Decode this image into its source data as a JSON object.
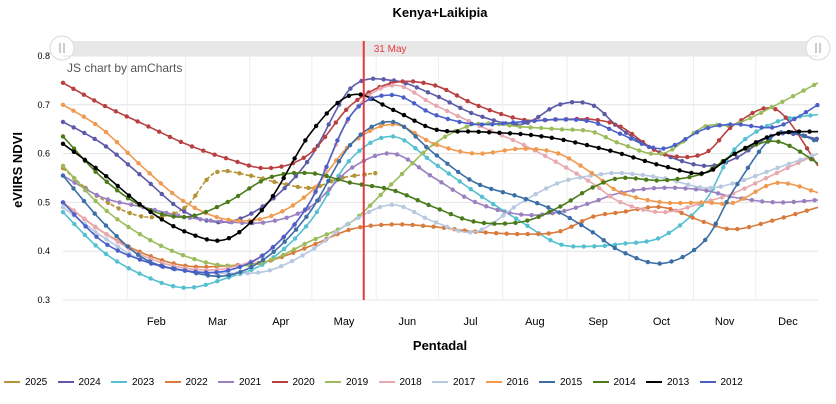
{
  "chart_data": {
    "type": "line",
    "title": "Kenya+Laikipia",
    "xlabel": "Pentadal",
    "ylabel": "eVIIRS NDVI",
    "credit": "JS chart by amCharts",
    "ylim": [
      0.3,
      0.8
    ],
    "yticks": [
      "0.3",
      "0.4",
      "0.5",
      "0.6",
      "0.7",
      "0.8"
    ],
    "x_months": [
      "Feb",
      "Mar",
      "Apr",
      "May",
      "Jun",
      "Jul",
      "Aug",
      "Sep",
      "Oct",
      "Nov",
      "Dec"
    ],
    "cursor_label": "31 May",
    "cursor_day": 146,
    "grid": true,
    "legend_position": "bottom",
    "series": [
      {
        "name": "2025",
        "color": "#b49434",
        "dash": true,
        "days": [
          1,
          15,
          32,
          46,
          60,
          74,
          91,
          105,
          121,
          135,
          152
        ],
        "values": [
          0.57,
          0.52,
          0.48,
          0.47,
          0.49,
          0.56,
          0.555,
          0.54,
          0.53,
          0.55,
          0.56
        ]
      },
      {
        "name": "2024",
        "color": "#5c5aa8",
        "days": [
          1,
          20,
          40,
          60,
          80,
          100,
          120,
          140,
          160,
          180,
          200,
          222,
          240,
          256,
          270,
          290,
          310,
          325,
          345,
          365
        ],
        "values": [
          0.665,
          0.62,
          0.55,
          0.48,
          0.46,
          0.5,
          0.59,
          0.735,
          0.75,
          0.72,
          0.68,
          0.66,
          0.7,
          0.7,
          0.65,
          0.6,
          0.575,
          0.59,
          0.64,
          0.63
        ]
      },
      {
        "name": "2023",
        "color": "#55c0d0",
        "days": [
          1,
          20,
          40,
          60,
          80,
          100,
          120,
          140,
          160,
          180,
          200,
          222,
          240,
          256,
          270,
          290,
          310,
          325,
          345,
          365
        ],
        "values": [
          0.48,
          0.4,
          0.35,
          0.325,
          0.345,
          0.38,
          0.46,
          0.59,
          0.635,
          0.58,
          0.52,
          0.46,
          0.415,
          0.41,
          0.415,
          0.43,
          0.5,
          0.61,
          0.665,
          0.68
        ]
      },
      {
        "name": "2022",
        "color": "#d87b3c",
        "days": [
          1,
          20,
          40,
          60,
          80,
          100,
          120,
          140,
          160,
          180,
          200,
          222,
          240,
          256,
          270,
          290,
          310,
          325,
          345,
          365
        ],
        "values": [
          0.5,
          0.44,
          0.395,
          0.37,
          0.37,
          0.38,
          0.41,
          0.445,
          0.455,
          0.45,
          0.44,
          0.435,
          0.44,
          0.47,
          0.48,
          0.49,
          0.46,
          0.445,
          0.465,
          0.49
        ]
      },
      {
        "name": "2021",
        "color": "#9a80c0",
        "days": [
          1,
          20,
          40,
          60,
          80,
          100,
          120,
          140,
          160,
          180,
          200,
          222,
          240,
          256,
          270,
          290,
          310,
          325,
          345,
          365
        ],
        "values": [
          0.555,
          0.51,
          0.49,
          0.47,
          0.46,
          0.46,
          0.49,
          0.57,
          0.6,
          0.55,
          0.5,
          0.475,
          0.48,
          0.5,
          0.52,
          0.53,
          0.525,
          0.51,
          0.5,
          0.505
        ]
      },
      {
        "name": "2020",
        "color": "#b84040",
        "days": [
          1,
          20,
          40,
          60,
          80,
          100,
          120,
          140,
          160,
          180,
          200,
          222,
          240,
          256,
          270,
          290,
          310,
          325,
          345,
          365
        ],
        "values": [
          0.745,
          0.7,
          0.66,
          0.62,
          0.59,
          0.57,
          0.6,
          0.7,
          0.745,
          0.74,
          0.7,
          0.67,
          0.67,
          0.67,
          0.655,
          0.6,
          0.6,
          0.66,
          0.69,
          0.575
        ]
      },
      {
        "name": "2019",
        "color": "#9cbc5c",
        "days": [
          1,
          20,
          40,
          60,
          80,
          100,
          120,
          140,
          160,
          180,
          200,
          222,
          240,
          256,
          270,
          290,
          310,
          325,
          345,
          365
        ],
        "values": [
          0.575,
          0.49,
          0.43,
          0.39,
          0.37,
          0.38,
          0.42,
          0.46,
          0.54,
          0.62,
          0.66,
          0.655,
          0.65,
          0.645,
          0.62,
          0.6,
          0.655,
          0.66,
          0.7,
          0.745
        ]
      },
      {
        "name": "2018",
        "color": "#e8a8b0",
        "days": [
          1,
          20,
          40,
          60,
          80,
          100,
          120,
          140,
          160,
          180,
          200,
          222,
          240,
          256,
          270,
          290,
          310,
          325,
          345,
          365
        ],
        "values": [
          0.5,
          0.44,
          0.39,
          0.365,
          0.365,
          0.4,
          0.5,
          0.68,
          0.74,
          0.7,
          0.66,
          0.62,
          0.58,
          0.54,
          0.5,
          0.48,
          0.5,
          0.52,
          0.56,
          0.6
        ]
      },
      {
        "name": "2017",
        "color": "#b8c8e0",
        "days": [
          1,
          20,
          40,
          60,
          80,
          100,
          120,
          140,
          160,
          180,
          200,
          222,
          240,
          256,
          270,
          290,
          310,
          325,
          345,
          365
        ],
        "values": [
          0.49,
          0.43,
          0.38,
          0.36,
          0.355,
          0.36,
          0.4,
          0.46,
          0.495,
          0.46,
          0.44,
          0.5,
          0.54,
          0.555,
          0.56,
          0.55,
          0.53,
          0.54,
          0.57,
          0.6
        ]
      },
      {
        "name": "2016",
        "color": "#f09a50",
        "days": [
          1,
          20,
          40,
          60,
          80,
          100,
          120,
          140,
          160,
          180,
          200,
          222,
          240,
          256,
          270,
          290,
          310,
          325,
          345,
          365
        ],
        "values": [
          0.7,
          0.65,
          0.57,
          0.5,
          0.465,
          0.47,
          0.52,
          0.62,
          0.66,
          0.62,
          0.6,
          0.61,
          0.6,
          0.56,
          0.52,
          0.5,
          0.5,
          0.5,
          0.54,
          0.52
        ]
      },
      {
        "name": "2015",
        "color": "#3a6ea5",
        "days": [
          1,
          20,
          40,
          60,
          80,
          100,
          120,
          140,
          160,
          180,
          200,
          222,
          240,
          256,
          270,
          290,
          310,
          325,
          345,
          365
        ],
        "values": [
          0.555,
          0.46,
          0.385,
          0.36,
          0.35,
          0.39,
          0.48,
          0.62,
          0.665,
          0.6,
          0.54,
          0.51,
          0.48,
          0.44,
          0.4,
          0.375,
          0.42,
          0.53,
          0.64,
          0.625
        ]
      },
      {
        "name": "2014",
        "color": "#4a7a1a",
        "days": [
          1,
          20,
          40,
          60,
          80,
          100,
          120,
          140,
          160,
          180,
          200,
          222,
          240,
          256,
          270,
          290,
          310,
          325,
          345,
          365
        ],
        "values": [
          0.635,
          0.55,
          0.49,
          0.47,
          0.5,
          0.55,
          0.56,
          0.54,
          0.525,
          0.49,
          0.46,
          0.46,
          0.49,
          0.53,
          0.55,
          0.545,
          0.56,
          0.6,
          0.625,
          0.58
        ]
      },
      {
        "name": "2013",
        "color": "#000000",
        "days": [
          1,
          20,
          40,
          60,
          80,
          100,
          120,
          140,
          160,
          180,
          200,
          222,
          240,
          256,
          270,
          290,
          310,
          325,
          345,
          365
        ],
        "values": [
          0.62,
          0.56,
          0.49,
          0.44,
          0.425,
          0.5,
          0.64,
          0.72,
          0.69,
          0.65,
          0.645,
          0.64,
          0.63,
          0.615,
          0.6,
          0.575,
          0.56,
          0.6,
          0.64,
          0.645
        ]
      },
      {
        "name": "2012",
        "color": "#4a60c8",
        "days": [
          1,
          20,
          40,
          60,
          80,
          100,
          120,
          140,
          160,
          180,
          200,
          222,
          240,
          256,
          270,
          290,
          310,
          325,
          345,
          365
        ],
        "values": [
          0.5,
          0.42,
          0.38,
          0.36,
          0.36,
          0.4,
          0.5,
          0.68,
          0.72,
          0.68,
          0.66,
          0.665,
          0.67,
          0.665,
          0.64,
          0.61,
          0.65,
          0.66,
          0.655,
          0.7
        ]
      }
    ]
  }
}
